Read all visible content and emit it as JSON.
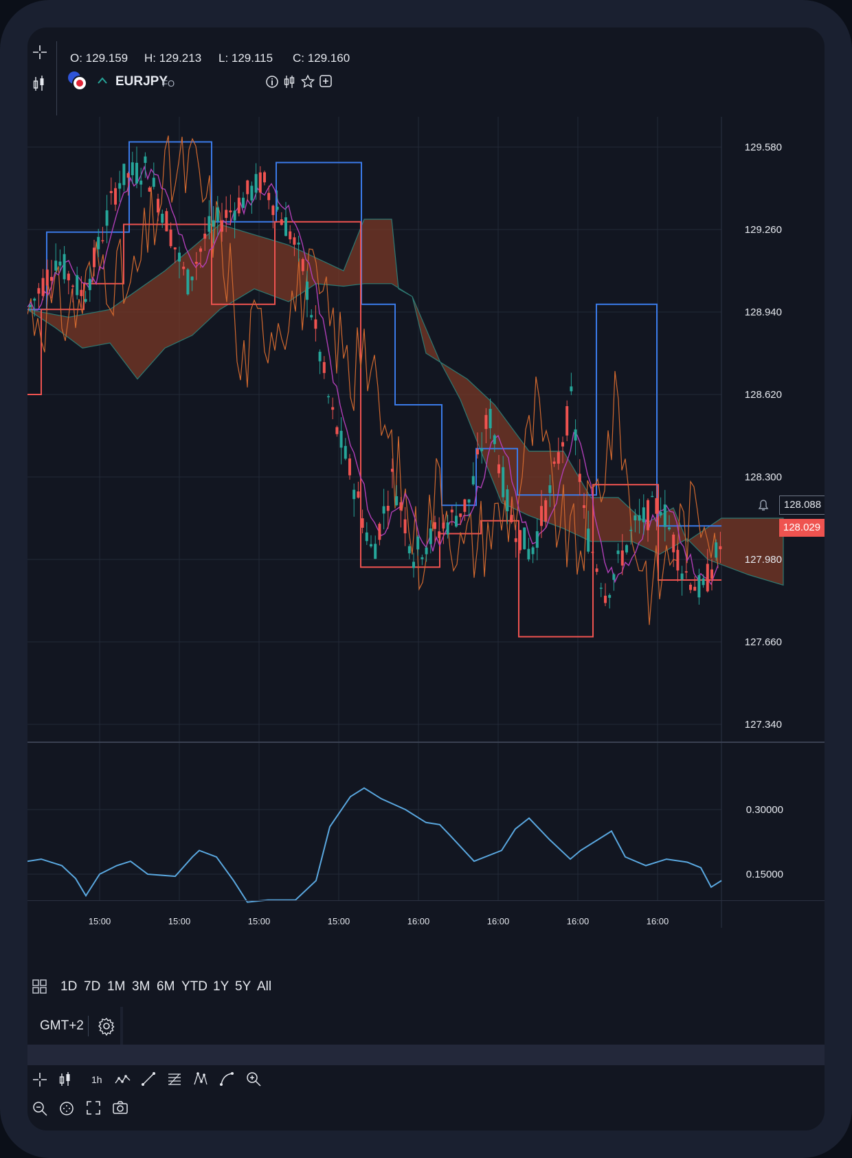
{
  "header": {
    "open": "O: 129.159",
    "high": "H: 129.213",
    "low": "L: 129.115",
    "close": "C: 129.160",
    "symbol": "EURJPY",
    "exchange": "FO"
  },
  "price_axis": [
    "129.580",
    "129.260",
    "128.940",
    "128.620",
    "128.300",
    "127.980",
    "127.660",
    "127.340"
  ],
  "current_price_flags": {
    "upper": "128.088",
    "lower": "128.029"
  },
  "indicator_axis": [
    "0.30000",
    "0.15000"
  ],
  "time_axis": [
    "15:00",
    "15:00",
    "15:00",
    "15:00",
    "16:00",
    "16:00",
    "16:00",
    "16:00"
  ],
  "timeframes": [
    "1D",
    "7D",
    "1M",
    "3M",
    "6M",
    "YTD",
    "1Y",
    "5Y",
    "All"
  ],
  "timezone": "GMT+2",
  "toolbar": {
    "interval": "1h"
  },
  "colors": {
    "bg": "#121621",
    "grid": "#232938",
    "up": "#26a69a",
    "down": "#ef5350",
    "blue_line": "#3b7bea",
    "orange_line": "#d2692f",
    "purple_line": "#b13fb8",
    "cloud": "#7a3826",
    "indicator": "#5aa8e0",
    "flag_red": "#ef5350"
  },
  "icons": [
    "crosshair-icon",
    "candles-icon",
    "country-flag-icon",
    "info-icon",
    "compare-icon",
    "star-icon",
    "add-icon",
    "bell-icon",
    "layout-grid-icon",
    "gear-icon",
    "line-style-icon",
    "trend-line-icon",
    "fib-icon",
    "pattern-icon",
    "curve-icon",
    "zoom-in-icon",
    "zoom-out-icon",
    "reset-icon",
    "fullscreen-icon",
    "camera-icon"
  ]
}
